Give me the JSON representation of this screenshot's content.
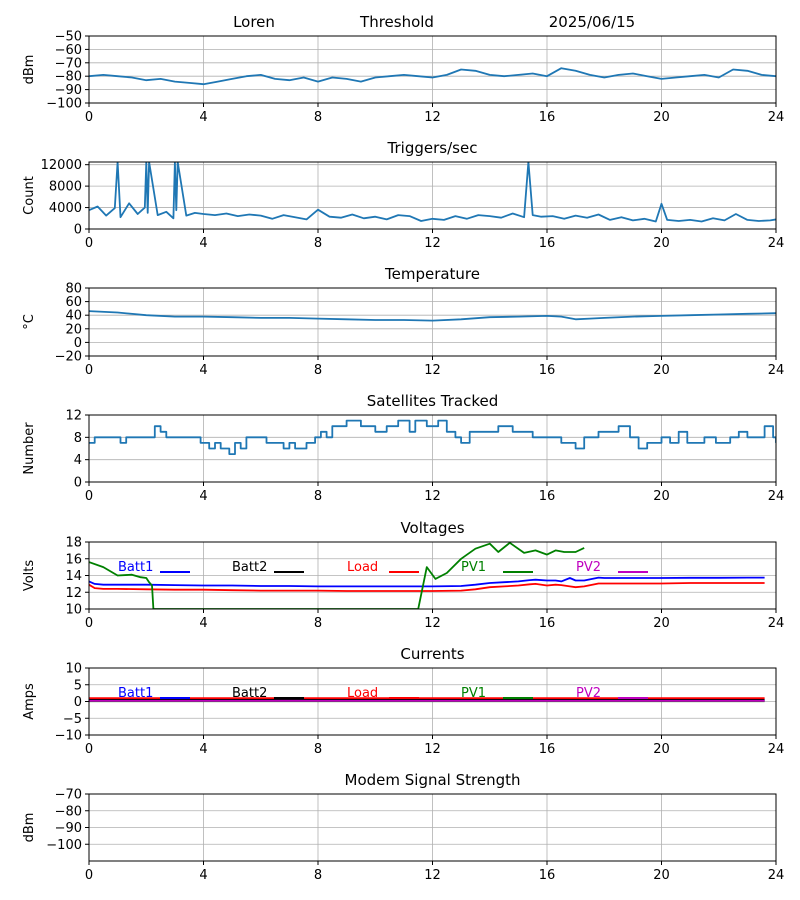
{
  "header": {
    "station": "Loren",
    "plot_name": "Threshold",
    "date": "2025/06/15"
  },
  "chart_data": [
    {
      "type": "line",
      "title": "",
      "ylabel": "dBm",
      "xlim": [
        0,
        24
      ],
      "xticks": [
        0,
        4,
        8,
        12,
        16,
        20,
        24
      ],
      "ylim": [
        -100,
        -50
      ],
      "yticks": [
        -100,
        -90,
        -80,
        -70,
        -60,
        -50
      ],
      "grid": true,
      "series": [
        {
          "color": "#1f77b4",
          "x": [
            0,
            0.5,
            1,
            1.5,
            2,
            2.5,
            3,
            3.5,
            4,
            4.5,
            5,
            5.5,
            6,
            6.5,
            7,
            7.5,
            8,
            8.5,
            9,
            9.5,
            10,
            10.5,
            11,
            11.5,
            12,
            12.5,
            13,
            13.5,
            14,
            14.5,
            15,
            15.5,
            16,
            16.5,
            17,
            17.5,
            18,
            18.5,
            19,
            19.5,
            20,
            20.5,
            21,
            21.5,
            22,
            22.5,
            23,
            23.5,
            24
          ],
          "y": [
            -80,
            -79,
            -80,
            -81,
            -83,
            -82,
            -84,
            -85,
            -86,
            -84,
            -82,
            -80,
            -79,
            -82,
            -83,
            -81,
            -84,
            -81,
            -82,
            -84,
            -81,
            -80,
            -79,
            -80,
            -81,
            -79,
            -75,
            -76,
            -79,
            -80,
            -79,
            -78,
            -80,
            -74,
            -76,
            -79,
            -81,
            -79,
            -78,
            -80,
            -82,
            -81,
            -80,
            -79,
            -81,
            -75,
            -76,
            -79,
            -80
          ]
        }
      ]
    },
    {
      "type": "line",
      "title": "Triggers/sec",
      "ylabel": "Count",
      "xlim": [
        0,
        24
      ],
      "xticks": [
        0,
        4,
        8,
        12,
        16,
        20,
        24
      ],
      "ylim": [
        0,
        12500
      ],
      "yticks": [
        0,
        4000,
        8000,
        12000
      ],
      "grid": true,
      "series": [
        {
          "color": "#1f77b4",
          "x": [
            0,
            0.3,
            0.6,
            0.9,
            1.0,
            1.1,
            1.4,
            1.7,
            1.95,
            2.0,
            2.05,
            2.1,
            2.4,
            2.7,
            2.95,
            3.0,
            3.05,
            3.1,
            3.4,
            3.7,
            4,
            4.4,
            4.8,
            5.2,
            5.6,
            6,
            6.4,
            6.8,
            7.2,
            7.6,
            8,
            8.4,
            8.8,
            9.2,
            9.6,
            10,
            10.4,
            10.8,
            11.2,
            11.6,
            12,
            12.4,
            12.8,
            13.2,
            13.6,
            14,
            14.4,
            14.8,
            15.2,
            15.35,
            15.5,
            15.8,
            16.2,
            16.6,
            17,
            17.4,
            17.8,
            18.2,
            18.6,
            19,
            19.4,
            19.8,
            20,
            20.2,
            20.6,
            21,
            21.4,
            21.8,
            22.2,
            22.6,
            23,
            23.4,
            23.8,
            24
          ],
          "y": [
            3500,
            4200,
            2500,
            3900,
            12500,
            2200,
            4800,
            2800,
            4000,
            12500,
            3000,
            12500,
            2600,
            3200,
            2000,
            12500,
            3500,
            12500,
            2500,
            3000,
            2800,
            2600,
            2900,
            2400,
            2700,
            2500,
            1900,
            2600,
            2200,
            1800,
            3600,
            2300,
            2100,
            2700,
            2000,
            2300,
            1800,
            2600,
            2400,
            1500,
            1900,
            1700,
            2400,
            1900,
            2600,
            2400,
            2100,
            2900,
            2200,
            12500,
            2600,
            2300,
            2400,
            1900,
            2500,
            2100,
            2700,
            1700,
            2200,
            1600,
            1900,
            1400,
            4700,
            1700,
            1500,
            1700,
            1400,
            2000,
            1600,
            2800,
            1700,
            1500,
            1600,
            1800
          ]
        }
      ]
    },
    {
      "type": "line",
      "title": "Temperature",
      "ylabel": "°C",
      "xlim": [
        0,
        24
      ],
      "xticks": [
        0,
        4,
        8,
        12,
        16,
        20,
        24
      ],
      "ylim": [
        -20,
        80
      ],
      "yticks": [
        -20,
        0,
        20,
        40,
        60,
        80
      ],
      "grid": true,
      "series": [
        {
          "color": "#1f77b4",
          "x": [
            0,
            1,
            2,
            3,
            4,
            5,
            6,
            7,
            8,
            9,
            10,
            11,
            12,
            13,
            14,
            15,
            16,
            16.5,
            17,
            17.5,
            18,
            19,
            20,
            21,
            22,
            23,
            24
          ],
          "y": [
            46,
            44,
            40,
            38,
            38,
            37,
            36,
            36,
            35,
            34,
            33,
            33,
            32,
            34,
            37,
            38,
            39,
            38,
            34,
            35,
            36,
            38,
            39,
            40,
            41,
            42,
            43
          ]
        }
      ]
    },
    {
      "type": "line",
      "title": "Satellites Tracked",
      "ylabel": "Number",
      "xlim": [
        0,
        24
      ],
      "xticks": [
        0,
        4,
        8,
        12,
        16,
        20,
        24
      ],
      "ylim": [
        0,
        12
      ],
      "yticks": [
        0,
        4,
        8,
        12
      ],
      "grid": true,
      "step": true,
      "series": [
        {
          "color": "#1f77b4",
          "x": [
            0,
            0.2,
            1.1,
            1.3,
            2.3,
            2.5,
            2.7,
            3.5,
            3.9,
            4.2,
            4.4,
            4.6,
            4.9,
            5.1,
            5.3,
            5.5,
            6.2,
            6.6,
            6.8,
            7.0,
            7.2,
            7.6,
            7.9,
            8.1,
            8.3,
            8.5,
            9.0,
            9.5,
            10.0,
            10.4,
            10.8,
            11.2,
            11.4,
            11.8,
            12.0,
            12.2,
            12.5,
            12.8,
            13.0,
            13.3,
            13.9,
            14.3,
            14.8,
            15.5,
            16.2,
            16.5,
            17.0,
            17.3,
            17.8,
            18.5,
            18.9,
            19.2,
            19.5,
            20.0,
            20.3,
            20.6,
            20.9,
            21.5,
            21.9,
            22.4,
            22.7,
            23.0,
            23.6,
            23.9,
            24
          ],
          "y": [
            7,
            8,
            7,
            8,
            10,
            9,
            8,
            8,
            7,
            6,
            7,
            6,
            5,
            7,
            6,
            8,
            7,
            7,
            6,
            7,
            6,
            7,
            8,
            9,
            8,
            10,
            11,
            10,
            9,
            10,
            11,
            9,
            11,
            10,
            10,
            11,
            9,
            8,
            7,
            9,
            9,
            10,
            9,
            8,
            8,
            7,
            6,
            8,
            9,
            10,
            8,
            6,
            7,
            8,
            7,
            9,
            7,
            8,
            7,
            8,
            9,
            8,
            10,
            8,
            7
          ]
        }
      ]
    },
    {
      "type": "line",
      "title": "Voltages",
      "ylabel": "Volts",
      "xlim": [
        0,
        24
      ],
      "xticks": [
        0,
        4,
        8,
        12,
        16,
        20,
        24
      ],
      "ylim": [
        10,
        18
      ],
      "yticks": [
        10,
        12,
        14,
        16,
        18
      ],
      "grid": true,
      "legend": [
        "Batt1",
        "Batt2",
        "Load",
        "PV1",
        "PV2"
      ],
      "series": [
        {
          "name": "Batt1",
          "color": "#0000ff",
          "x": [
            0,
            0.2,
            0.5,
            1,
            2,
            3,
            4,
            5,
            6,
            7,
            8,
            9,
            10,
            11,
            12,
            13,
            13.5,
            14,
            14.5,
            15,
            15.4,
            15.6,
            16,
            16.3,
            16.5,
            16.8,
            17,
            17.3,
            17.8,
            18,
            19,
            20,
            21,
            22,
            23,
            23.6
          ],
          "y": [
            13.3,
            13.0,
            12.9,
            12.9,
            12.9,
            12.85,
            12.8,
            12.8,
            12.75,
            12.75,
            12.7,
            12.7,
            12.7,
            12.7,
            12.7,
            12.75,
            12.9,
            13.1,
            13.2,
            13.3,
            13.45,
            13.5,
            13.4,
            13.4,
            13.3,
            13.7,
            13.4,
            13.4,
            13.75,
            13.7,
            13.7,
            13.7,
            13.72,
            13.72,
            13.75,
            13.75
          ]
        },
        {
          "name": "Batt2",
          "color": "#000000",
          "x": [],
          "y": []
        },
        {
          "name": "Load",
          "color": "#ff0000",
          "x": [
            0,
            0.2,
            0.5,
            1,
            2,
            3,
            4,
            5,
            6,
            7,
            8,
            9,
            10,
            11,
            12,
            13,
            13.5,
            14,
            14.5,
            15,
            15.4,
            15.6,
            16,
            16.3,
            16.5,
            16.8,
            17,
            17.3,
            17.8,
            18,
            19,
            20,
            21,
            22,
            23,
            23.6
          ],
          "y": [
            12.9,
            12.5,
            12.4,
            12.4,
            12.35,
            12.3,
            12.3,
            12.25,
            12.2,
            12.2,
            12.2,
            12.15,
            12.15,
            12.15,
            12.15,
            12.2,
            12.35,
            12.6,
            12.7,
            12.8,
            12.95,
            13.0,
            12.8,
            12.9,
            12.85,
            12.7,
            12.6,
            12.7,
            13.05,
            13.05,
            13.05,
            13.05,
            13.1,
            13.1,
            13.1,
            13.1
          ]
        },
        {
          "name": "PV1",
          "color": "#008000",
          "x": [
            0,
            0.5,
            1,
            1.5,
            1.8,
            2.0,
            2.1,
            2.2,
            2.25,
            11.5,
            11.8,
            12.1,
            12.5,
            13,
            13.5,
            14,
            14.3,
            14.7,
            15.2,
            15.6,
            16,
            16.3,
            16.6,
            17,
            17.3
          ],
          "y": [
            15.6,
            15.0,
            14.0,
            14.1,
            13.8,
            13.7,
            13.2,
            12.8,
            10.0,
            10.0,
            15.0,
            13.6,
            14.3,
            16.0,
            17.2,
            17.8,
            16.8,
            17.9,
            16.7,
            17.0,
            16.5,
            17.0,
            16.8,
            16.8,
            17.3
          ]
        },
        {
          "name": "PV2",
          "color": "#bf00bf",
          "x": [],
          "y": []
        }
      ]
    },
    {
      "type": "line",
      "title": "Currents",
      "ylabel": "Amps",
      "xlim": [
        0,
        24
      ],
      "xticks": [
        0,
        4,
        8,
        12,
        16,
        20,
        24
      ],
      "ylim": [
        -10,
        10
      ],
      "yticks": [
        -10,
        -5,
        0,
        5,
        10
      ],
      "grid": true,
      "legend": [
        "Batt1",
        "Batt2",
        "Load",
        "PV1",
        "PV2"
      ],
      "series": [
        {
          "name": "Batt1",
          "color": "#0000ff",
          "x": [
            0,
            6,
            12,
            18,
            23.6
          ],
          "y": [
            0.3,
            0.3,
            0.3,
            0.3,
            0.3
          ]
        },
        {
          "name": "Batt2",
          "color": "#000000",
          "x": [
            0,
            6,
            12,
            18,
            23.6
          ],
          "y": [
            0.6,
            0.6,
            0.6,
            0.6,
            0.6
          ]
        },
        {
          "name": "Load",
          "color": "#ff0000",
          "x": [
            0,
            6,
            12,
            18,
            23.6
          ],
          "y": [
            1.0,
            1.0,
            1.0,
            1.0,
            1.0
          ]
        },
        {
          "name": "PV1",
          "color": "#008000",
          "x": [
            0,
            6,
            12,
            18,
            23.6
          ],
          "y": [
            0.1,
            0.1,
            0.1,
            0.1,
            0.1
          ]
        },
        {
          "name": "PV2",
          "color": "#bf00bf",
          "x": [
            0,
            6,
            12,
            18,
            23.6
          ],
          "y": [
            0.2,
            0.2,
            0.2,
            0.2,
            0.2
          ]
        }
      ]
    },
    {
      "type": "line",
      "title": "Modem Signal Strength",
      "ylabel": "dBm",
      "xlim": [
        0,
        24
      ],
      "xticks": [
        0,
        4,
        8,
        12,
        16,
        20,
        24
      ],
      "ylim": [
        -110,
        -70
      ],
      "yticks": [
        -100,
        -90,
        -80,
        -70
      ],
      "grid": true,
      "series": []
    }
  ]
}
